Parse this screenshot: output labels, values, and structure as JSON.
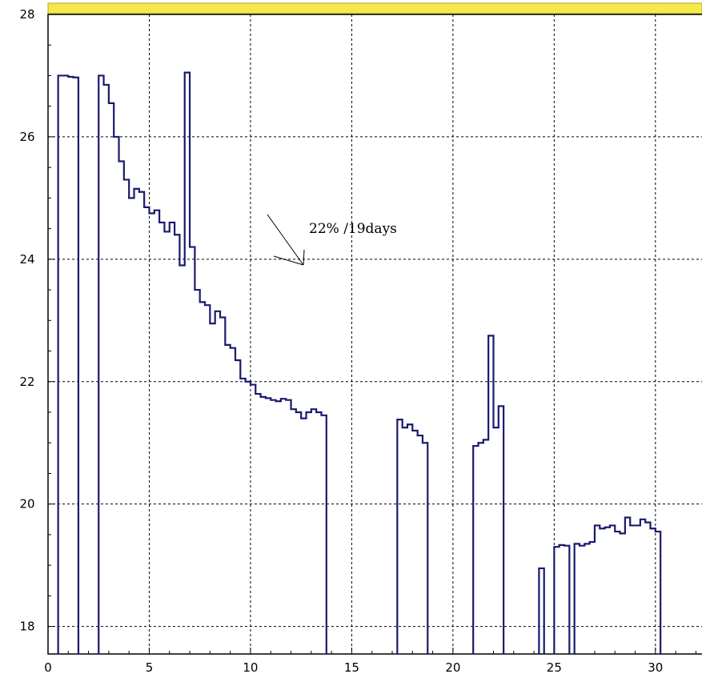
{
  "chart_data": {
    "type": "line",
    "title": "",
    "xlabel": "",
    "ylabel": "",
    "xlim": [
      0,
      32.3
    ],
    "ylim": [
      17.55,
      28
    ],
    "x_ticks": [
      0,
      5,
      10,
      15,
      20,
      25,
      30
    ],
    "y_ticks": [
      18,
      20,
      22,
      24,
      26,
      28
    ],
    "grid": true,
    "line_color": "#1a1a6e",
    "title_bar_color": "#f5e84a",
    "annotation": {
      "text": "22% /19days"
    },
    "series": [
      {
        "step_width": 0.25,
        "baseline": 17.55,
        "segments": [
          {
            "x_start": 0.5,
            "values": [
              27.0,
              27.0,
              26.98,
              26.97
            ]
          },
          {
            "x_start": 2.5,
            "values": [
              27.0,
              26.85,
              26.55,
              26.0,
              25.6,
              25.3,
              25.0,
              25.15,
              25.1,
              24.85,
              24.75,
              24.8,
              24.6,
              24.45,
              24.6,
              24.4,
              23.9,
              27.05,
              24.2,
              23.5,
              23.3,
              23.25,
              22.95,
              23.15,
              23.05,
              22.6,
              22.55,
              22.35,
              22.05,
              22.0,
              21.95,
              21.8,
              21.75,
              21.73,
              21.7,
              21.68,
              21.72,
              21.7,
              21.55,
              21.5,
              21.4,
              21.5,
              21.55,
              21.5,
              21.45
            ]
          },
          {
            "x_start": 17.25,
            "values": [
              21.38,
              21.25,
              21.3,
              21.2,
              21.12,
              21.0
            ]
          },
          {
            "x_start": 21.0,
            "values": [
              20.95,
              21.0,
              21.05,
              22.75,
              21.25,
              21.6
            ]
          },
          {
            "x_start": 24.25,
            "values": [
              18.95
            ]
          },
          {
            "x_start": 25.0,
            "values": [
              19.3,
              19.33,
              19.32
            ]
          },
          {
            "x_start": 26.0,
            "values": [
              19.35,
              19.32,
              19.35,
              19.38,
              19.65,
              19.6,
              19.62,
              19.65,
              19.55,
              19.52,
              19.78,
              19.65,
              19.65,
              19.75,
              19.7,
              19.6,
              19.55
            ]
          }
        ]
      }
    ]
  }
}
